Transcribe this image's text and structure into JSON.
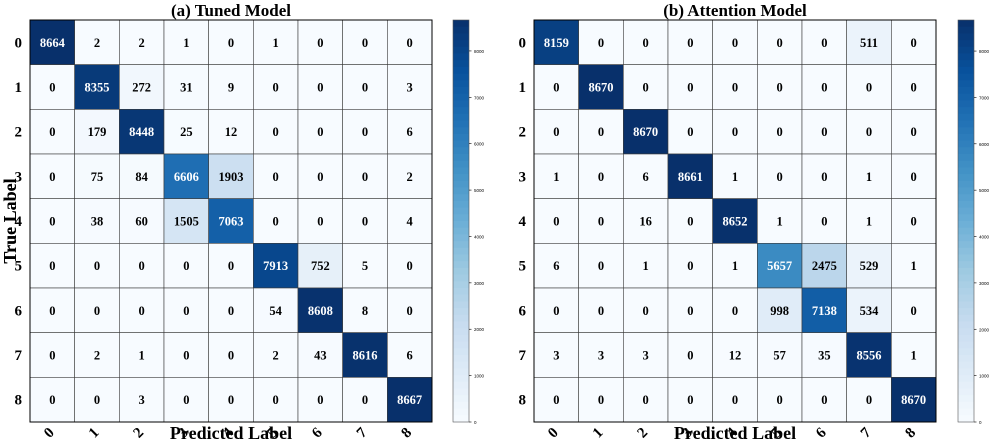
{
  "chart_data": [
    {
      "type": "heatmap",
      "title": "(a) Tuned Model",
      "xlabel": "Predicted Label",
      "ylabel": "True Label",
      "x_tick_labels": [
        "0",
        "1",
        "2",
        "3",
        "4",
        "5",
        "6",
        "7",
        "8"
      ],
      "y_tick_labels": [
        "0",
        "1",
        "2",
        "3",
        "4",
        "5",
        "6",
        "7",
        "8"
      ],
      "values": [
        [
          8664,
          2,
          2,
          1,
          0,
          1,
          0,
          0,
          0
        ],
        [
          0,
          8355,
          272,
          31,
          9,
          0,
          0,
          0,
          3
        ],
        [
          0,
          179,
          8448,
          25,
          12,
          0,
          0,
          0,
          6
        ],
        [
          0,
          75,
          84,
          6606,
          1903,
          0,
          0,
          0,
          2
        ],
        [
          0,
          38,
          60,
          1505,
          7063,
          0,
          0,
          0,
          4
        ],
        [
          0,
          0,
          0,
          0,
          0,
          7913,
          752,
          5,
          0
        ],
        [
          0,
          0,
          0,
          0,
          0,
          54,
          8608,
          8,
          0
        ],
        [
          0,
          2,
          1,
          0,
          0,
          2,
          43,
          8616,
          6
        ],
        [
          0,
          0,
          3,
          0,
          0,
          0,
          0,
          0,
          8667
        ]
      ],
      "colorbar": {
        "vmin": 0,
        "vmax": 8667,
        "ticks": [
          0,
          1000,
          2000,
          3000,
          4000,
          5000,
          6000,
          7000,
          8000
        ]
      },
      "colormap": "Blues",
      "grid": true
    },
    {
      "type": "heatmap",
      "title": "(b) Attention Model",
      "xlabel": "Predicted Label",
      "ylabel": "True Label",
      "x_tick_labels": [
        "0",
        "1",
        "2",
        "3",
        "4",
        "5",
        "6",
        "7",
        "8"
      ],
      "y_tick_labels": [
        "0",
        "1",
        "2",
        "3",
        "4",
        "5",
        "6",
        "7",
        "8"
      ],
      "values": [
        [
          8159,
          0,
          0,
          0,
          0,
          0,
          0,
          511,
          0
        ],
        [
          0,
          8670,
          0,
          0,
          0,
          0,
          0,
          0,
          0
        ],
        [
          0,
          0,
          8670,
          0,
          0,
          0,
          0,
          0,
          0
        ],
        [
          1,
          0,
          6,
          8661,
          1,
          0,
          0,
          1,
          0
        ],
        [
          0,
          0,
          16,
          0,
          8652,
          1,
          0,
          1,
          0
        ],
        [
          6,
          0,
          1,
          0,
          1,
          5657,
          2475,
          529,
          1
        ],
        [
          0,
          0,
          0,
          0,
          0,
          998,
          7138,
          534,
          0
        ],
        [
          3,
          3,
          3,
          0,
          12,
          57,
          35,
          8556,
          1
        ],
        [
          0,
          0,
          0,
          0,
          0,
          0,
          0,
          0,
          8670
        ]
      ],
      "colorbar": {
        "vmin": 0,
        "vmax": 8670,
        "ticks": [
          0,
          1000,
          2000,
          3000,
          4000,
          5000,
          6000,
          7000,
          8000
        ]
      },
      "colormap": "Blues",
      "grid": true
    }
  ]
}
